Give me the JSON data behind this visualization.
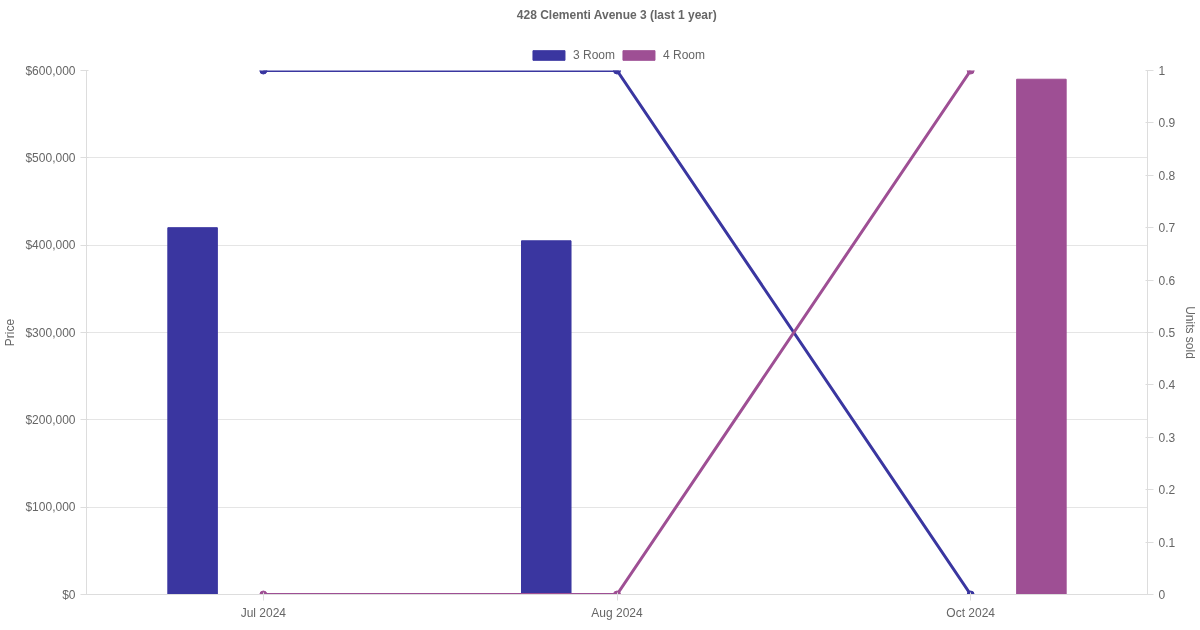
{
  "chart_data": {
    "type": "bar",
    "title": "428 Clementi Avenue 3 (last 1 year)",
    "ylabel": "Price",
    "y2label": "Units sold",
    "categories": [
      "Jul 2024",
      "Aug 2024",
      "Oct 2024"
    ],
    "series": [
      {
        "name": "3 Room",
        "color": "#3a36a0",
        "values": [
          420000,
          405000,
          null
        ]
      },
      {
        "name": "4 Room",
        "color": "#9e4f94",
        "values": [
          null,
          null,
          590000
        ]
      },
      {
        "type": "line",
        "axis": "y2",
        "color": "#3a36a0",
        "values": [
          1,
          1,
          0
        ]
      },
      {
        "type": "line",
        "axis": "y2",
        "color": "#9e4f94",
        "values": [
          0,
          0,
          1
        ]
      }
    ],
    "ylim": [
      0,
      600000
    ],
    "yticks": [
      {
        "value": 0,
        "label": "$0"
      },
      {
        "value": 100000,
        "label": "$100,000"
      },
      {
        "value": 200000,
        "label": "$200,000"
      },
      {
        "value": 300000,
        "label": "$300,000"
      },
      {
        "value": 400000,
        "label": "$400,000"
      },
      {
        "value": 500000,
        "label": "$500,000"
      },
      {
        "value": 600000,
        "label": "$600,000"
      }
    ],
    "y2lim": [
      0,
      1
    ],
    "y2ticks": [
      0,
      0.1,
      0.2,
      0.3,
      0.4,
      0.5,
      0.6,
      0.7,
      0.8,
      0.9,
      1
    ],
    "grid": "y",
    "legend": "top",
    "marker": "circle",
    "line_style": "solid"
  }
}
